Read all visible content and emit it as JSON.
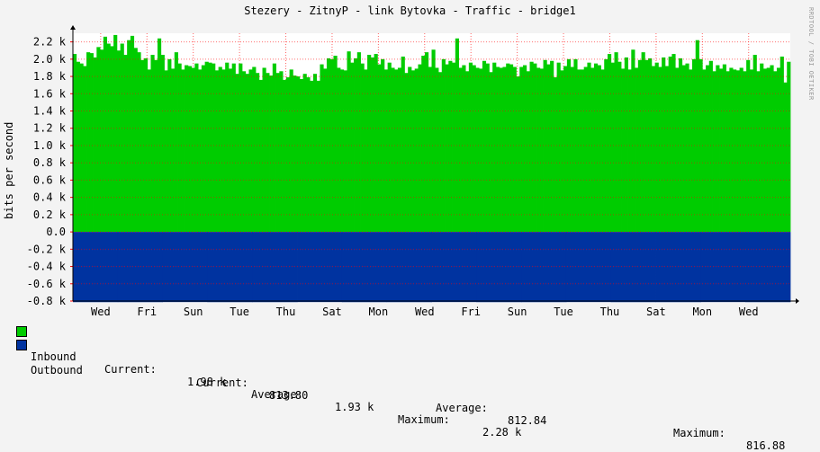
{
  "chart_data": {
    "type": "area",
    "title": "Stezery - ZitnyP - link Bytovka - Traffic - bridge1",
    "ylabel": "bits per second",
    "ylim": [
      -800,
      2300
    ],
    "y_ticks": [
      {
        "value": 2200,
        "label": "2.2 k"
      },
      {
        "value": 2000,
        "label": "2.0 k"
      },
      {
        "value": 1800,
        "label": "1.8 k"
      },
      {
        "value": 1600,
        "label": "1.6 k"
      },
      {
        "value": 1400,
        "label": "1.4 k"
      },
      {
        "value": 1200,
        "label": "1.2 k"
      },
      {
        "value": 1000,
        "label": "1.0 k"
      },
      {
        "value": 800,
        "label": "0.8 k"
      },
      {
        "value": 600,
        "label": "0.6 k"
      },
      {
        "value": 400,
        "label": "0.4 k"
      },
      {
        "value": 200,
        "label": "0.2 k"
      },
      {
        "value": 0,
        "label": "0.0"
      },
      {
        "value": -200,
        "label": "-0.2 k"
      },
      {
        "value": -400,
        "label": "-0.4 k"
      },
      {
        "value": -600,
        "label": "-0.6 k"
      },
      {
        "value": -800,
        "label": "-0.8 k"
      }
    ],
    "x_labels": [
      "Wed",
      "Fri",
      "Sun",
      "Tue",
      "Thu",
      "Sat",
      "Mon",
      "Wed",
      "Fri",
      "Sun",
      "Tue",
      "Thu",
      "Sat",
      "Mon",
      "Wed"
    ],
    "grid": true,
    "legend_placement": "bottom",
    "series": [
      {
        "name": "Inbound",
        "color": "#00cc00",
        "values": [
          2060,
          1970,
          1950,
          1920,
          2080,
          2070,
          2020,
          2140,
          2110,
          2260,
          2180,
          2150,
          2280,
          2100,
          2180,
          2050,
          2220,
          2270,
          2130,
          2080,
          1990,
          2010,
          1880,
          2050,
          1990,
          2240,
          2050,
          1870,
          2000,
          1890,
          2080,
          1950,
          1880,
          1930,
          1920,
          1900,
          1950,
          1880,
          1930,
          1970,
          1960,
          1950,
          1870,
          1910,
          1880,
          1960,
          1890,
          1950,
          1830,
          1950,
          1860,
          1830,
          1880,
          1910,
          1840,
          1760,
          1900,
          1840,
          1810,
          1950,
          1840,
          1860,
          1760,
          1790,
          1880,
          1810,
          1800,
          1770,
          1830,
          1790,
          1750,
          1830,
          1750,
          1940,
          1890,
          2010,
          2000,
          2040,
          1900,
          1880,
          1870,
          2090,
          1960,
          2010,
          2080,
          1950,
          1880,
          2050,
          2020,
          2060,
          1940,
          2000,
          1880,
          1960,
          1900,
          1880,
          1900,
          2030,
          1840,
          1910,
          1870,
          1890,
          1940,
          2040,
          2080,
          1910,
          2110,
          1900,
          1850,
          2000,
          1940,
          1980,
          1960,
          2240,
          1900,
          1930,
          1860,
          1960,
          1930,
          1900,
          1890,
          1980,
          1950,
          1850,
          1960,
          1910,
          1900,
          1910,
          1950,
          1940,
          1910,
          1800,
          1910,
          1930,
          1860,
          1970,
          1950,
          1900,
          1890,
          1990,
          1940,
          1980,
          1790,
          1960,
          1870,
          1920,
          2000,
          1910,
          2000,
          1880,
          1880,
          1910,
          1960,
          1900,
          1950,
          1930,
          1880,
          2000,
          2060,
          1960,
          2080,
          1970,
          1890,
          2020,
          1880,
          2110,
          1900,
          1990,
          2080,
          1990,
          2010,
          1920,
          1960,
          1910,
          2020,
          1920,
          2030,
          2060,
          1900,
          2010,
          1930,
          1950,
          1880,
          2000,
          2220,
          2000,
          1880,
          1930,
          1980,
          1860,
          1930,
          1890,
          1940,
          1860,
          1900,
          1880,
          1870,
          1900,
          1860,
          1990,
          1880,
          2050,
          1860,
          1950,
          1890,
          1900,
          1930,
          1860,
          1900,
          2030,
          1730,
          1970
        ]
      },
      {
        "name": "Outbound",
        "color": "#0033a0",
        "values": [
          -813,
          -813,
          -812,
          -813,
          -813,
          -812,
          -813,
          -813,
          -812,
          -813,
          -813,
          -812,
          -813,
          -813,
          -812,
          -813
        ]
      }
    ]
  },
  "legend": {
    "inbound": {
      "label": "Inbound",
      "current_label": "Current:",
      "current": "1.98 k",
      "average_label": "Average:",
      "average": "1.93 k",
      "maximum_label": "Maximum:",
      "maximum": "2.28 k"
    },
    "outbound": {
      "label": "Outbound",
      "current_label": "Current:",
      "current": "813.80",
      "average_label": "Average:",
      "average": "812.84",
      "maximum_label": "Maximum:",
      "maximum": "816.88"
    }
  },
  "watermark": "RRDTOOL / TOBI OETIKER",
  "colors": {
    "inbound": "#00cc00",
    "outbound": "#0033a0",
    "grid": "#ff0000",
    "axis": "#000000"
  }
}
